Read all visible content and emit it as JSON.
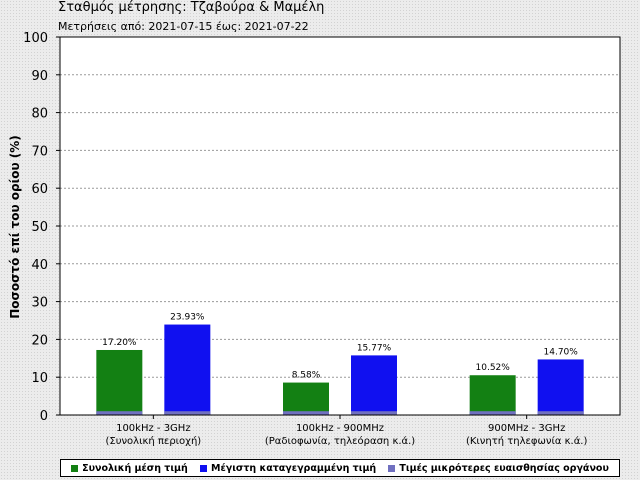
{
  "header": {
    "title": "Σταθμός μέτρησης: Τζαβούρα & Μαμέλη",
    "subtitle": "Μετρήσεις από: 2021-07-15 έως: 2021-07-22"
  },
  "legend": {
    "items": [
      {
        "label": "Συνολική μέση τιμή",
        "color": "#138013"
      },
      {
        "label": "Μέγιστη καταγεγραμμένη τιμή",
        "color": "#1010f0"
      },
      {
        "label": "Τιμές μικρότερες ευαισθησίας οργάνου",
        "color": "#7070c0"
      }
    ]
  },
  "chart_data": {
    "type": "bar",
    "title": "Σταθμός μέτρησης: Τζαβούρα & Μαμέλη",
    "subtitle": "Μετρήσεις από: 2021-07-15 έως: 2021-07-22",
    "ylabel": "Ποσοστό επί του ορίου (%)",
    "xlabel": "",
    "ylim": [
      0,
      100
    ],
    "yticks": [
      0,
      10,
      20,
      30,
      40,
      50,
      60,
      70,
      80,
      90,
      100
    ],
    "grid": true,
    "legend_position": "bottom",
    "categories": [
      {
        "line1": "100kHz - 3GHz",
        "line2": "(Συνολική περιοχή)"
      },
      {
        "line1": "100kHz - 900MHz",
        "line2": "(Ραδιοφωνία, τηλεόραση κ.ά.)"
      },
      {
        "line1": "900MHz - 3GHz",
        "line2": "(Κινητή τηλεφωνία κ.ά.)"
      }
    ],
    "series": [
      {
        "name": "Συνολική μέση τιμή",
        "color": "#138013",
        "values": [
          17.2,
          8.58,
          10.52
        ],
        "labels": [
          "17.20%",
          "8.58%",
          "10.52%"
        ]
      },
      {
        "name": "Μέγιστη καταγεγραμμένη τιμή",
        "color": "#1010f0",
        "values": [
          23.93,
          15.77,
          14.7
        ],
        "labels": [
          "23.93%",
          "15.77%",
          "14.70%"
        ]
      }
    ],
    "sensitivity_floor": {
      "name": "Τιμές μικρότερες ευαισθησίας οργάνου",
      "color": "#7070c0",
      "value": 1
    }
  }
}
